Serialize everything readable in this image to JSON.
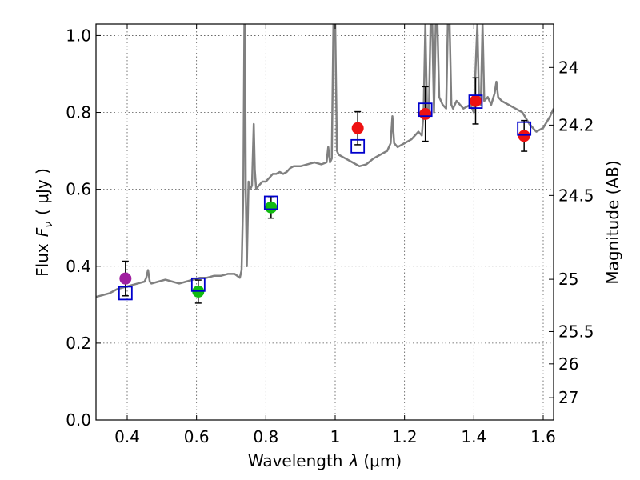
{
  "chart_data": {
    "type": "scatter",
    "xlabel": "Wavelength",
    "xlabel_symbol": "λ",
    "xlabel_unit": "(μm)",
    "ylabel": "Flux",
    "ylabel_symbol": "F",
    "ylabel_subscript": "ν",
    "ylabel_unit": "( μJy )",
    "ylabel_right": "Magnitude (AB)",
    "xlim": [
      0.31,
      1.63
    ],
    "ylim": [
      0.0,
      1.03
    ],
    "grid": true,
    "x_ticks": [
      {
        "value": 0.4,
        "label": "0.4"
      },
      {
        "value": 0.6,
        "label": "0.6"
      },
      {
        "value": 0.8,
        "label": "0.8"
      },
      {
        "value": 1.0,
        "label": "1"
      },
      {
        "value": 1.2,
        "label": "1.2"
      },
      {
        "value": 1.4,
        "label": "1.4"
      },
      {
        "value": 1.6,
        "label": "1.6"
      }
    ],
    "y_ticks": [
      {
        "value": 0.0,
        "label": "0.0"
      },
      {
        "value": 0.2,
        "label": "0.2"
      },
      {
        "value": 0.4,
        "label": "0.4"
      },
      {
        "value": 0.6,
        "label": "0.6"
      },
      {
        "value": 0.8,
        "label": "0.8"
      },
      {
        "value": 1.0,
        "label": "1.0"
      }
    ],
    "mag_ticks": [
      {
        "value": 0.917,
        "label": "24"
      },
      {
        "value": 0.767,
        "label": "24.2"
      },
      {
        "value": 0.584,
        "label": "24.5"
      },
      {
        "value": 0.366,
        "label": "25"
      },
      {
        "value": 0.23,
        "label": "25.5"
      },
      {
        "value": 0.146,
        "label": "26"
      },
      {
        "value": 0.058,
        "label": "27"
      }
    ],
    "series": [
      {
        "name": "observed_photometry",
        "marker": "circle",
        "points": [
          {
            "x": 0.395,
            "y": 0.368,
            "err": 0.045,
            "color": "#a020a0"
          },
          {
            "x": 0.605,
            "y": 0.334,
            "err": 0.03,
            "color": "#11bb11"
          },
          {
            "x": 0.815,
            "y": 0.553,
            "err": 0.028,
            "color": "#11bb11"
          },
          {
            "x": 1.065,
            "y": 0.759,
            "err": 0.043,
            "color": "#ee1111"
          },
          {
            "x": 1.26,
            "y": 0.796,
            "err": 0.071,
            "color": "#ee1111"
          },
          {
            "x": 1.405,
            "y": 0.83,
            "err": 0.06,
            "color": "#ee1111"
          },
          {
            "x": 1.545,
            "y": 0.739,
            "err": 0.04,
            "color": "#ee1111"
          }
        ]
      },
      {
        "name": "model_photometry",
        "marker": "open-square",
        "color": "#0000cc",
        "points": [
          {
            "x": 0.395,
            "y": 0.33
          },
          {
            "x": 0.605,
            "y": 0.352
          },
          {
            "x": 0.815,
            "y": 0.565
          },
          {
            "x": 1.065,
            "y": 0.712
          },
          {
            "x": 1.26,
            "y": 0.807
          },
          {
            "x": 1.405,
            "y": 0.828
          },
          {
            "x": 1.545,
            "y": 0.758
          }
        ]
      },
      {
        "name": "model_spectrum",
        "type": "line",
        "color": "#808080",
        "x": [
          0.31,
          0.33,
          0.35,
          0.37,
          0.39,
          0.41,
          0.43,
          0.45,
          0.455,
          0.46,
          0.465,
          0.47,
          0.49,
          0.51,
          0.53,
          0.55,
          0.57,
          0.59,
          0.61,
          0.63,
          0.65,
          0.67,
          0.69,
          0.71,
          0.725,
          0.73,
          0.735,
          0.738,
          0.74,
          0.742,
          0.745,
          0.75,
          0.755,
          0.76,
          0.765,
          0.768,
          0.772,
          0.78,
          0.79,
          0.8,
          0.81,
          0.82,
          0.83,
          0.84,
          0.85,
          0.86,
          0.87,
          0.88,
          0.9,
          0.92,
          0.94,
          0.96,
          0.975,
          0.98,
          0.985,
          0.99,
          0.995,
          1.0,
          1.005,
          1.01,
          1.03,
          1.05,
          1.07,
          1.09,
          1.11,
          1.13,
          1.15,
          1.16,
          1.165,
          1.17,
          1.18,
          1.2,
          1.22,
          1.24,
          1.25,
          1.255,
          1.26,
          1.265,
          1.27,
          1.275,
          1.28,
          1.285,
          1.29,
          1.295,
          1.3,
          1.31,
          1.32,
          1.325,
          1.33,
          1.335,
          1.34,
          1.35,
          1.37,
          1.39,
          1.4,
          1.41,
          1.415,
          1.42,
          1.425,
          1.43,
          1.44,
          1.45,
          1.46,
          1.465,
          1.47,
          1.48,
          1.5,
          1.52,
          1.54,
          1.56,
          1.58,
          1.6,
          1.62,
          1.63
        ],
        "y": [
          0.32,
          0.325,
          0.33,
          0.34,
          0.345,
          0.35,
          0.355,
          0.36,
          0.37,
          0.39,
          0.36,
          0.355,
          0.36,
          0.365,
          0.36,
          0.355,
          0.36,
          0.365,
          0.37,
          0.37,
          0.375,
          0.375,
          0.38,
          0.38,
          0.37,
          0.39,
          0.6,
          1.03,
          1.03,
          0.6,
          0.4,
          0.62,
          0.6,
          0.61,
          0.77,
          0.65,
          0.6,
          0.61,
          0.62,
          0.62,
          0.63,
          0.64,
          0.64,
          0.645,
          0.64,
          0.645,
          0.655,
          0.66,
          0.66,
          0.665,
          0.67,
          0.665,
          0.67,
          0.71,
          0.67,
          0.68,
          1.03,
          1.03,
          0.7,
          0.69,
          0.68,
          0.67,
          0.66,
          0.665,
          0.68,
          0.69,
          0.7,
          0.72,
          0.79,
          0.72,
          0.71,
          0.72,
          0.73,
          0.75,
          0.74,
          0.8,
          1.03,
          0.8,
          0.79,
          1.03,
          1.03,
          0.8,
          1.03,
          1.03,
          0.84,
          0.82,
          0.81,
          1.03,
          1.03,
          0.82,
          0.81,
          0.83,
          0.81,
          0.82,
          0.8,
          1.03,
          0.83,
          0.82,
          1.03,
          0.83,
          0.84,
          0.82,
          0.85,
          0.88,
          0.84,
          0.83,
          0.82,
          0.81,
          0.8,
          0.77,
          0.75,
          0.76,
          0.79,
          0.81
        ]
      }
    ]
  }
}
